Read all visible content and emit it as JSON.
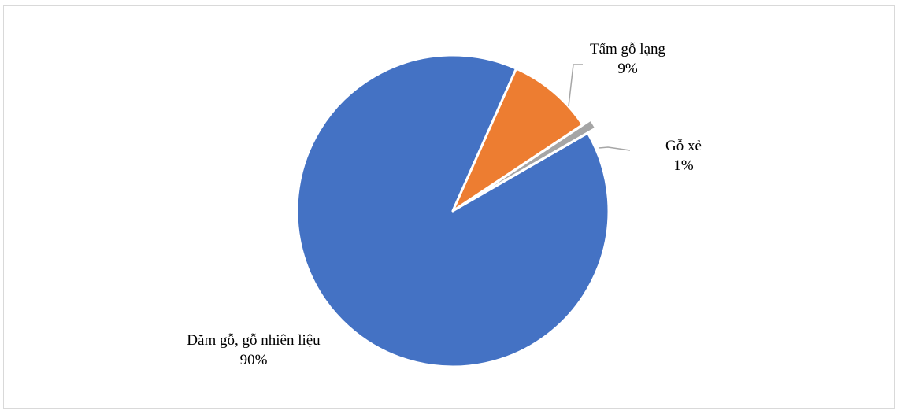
{
  "chart_data": {
    "type": "pie",
    "title": "",
    "slices": [
      {
        "label": "Dăm gỗ, gỗ nhiên liệu",
        "value": 90,
        "value_label": "90%",
        "color": "#4472C4"
      },
      {
        "label": "Tấm gỗ lạng",
        "value": 9,
        "value_label": "9%",
        "color": "#ED7D31"
      },
      {
        "label": "Gỗ xẻ",
        "value": 1,
        "value_label": "1%",
        "color": "#A5A5A5"
      }
    ],
    "legend": "none",
    "data_labels": "category name and percentage"
  }
}
